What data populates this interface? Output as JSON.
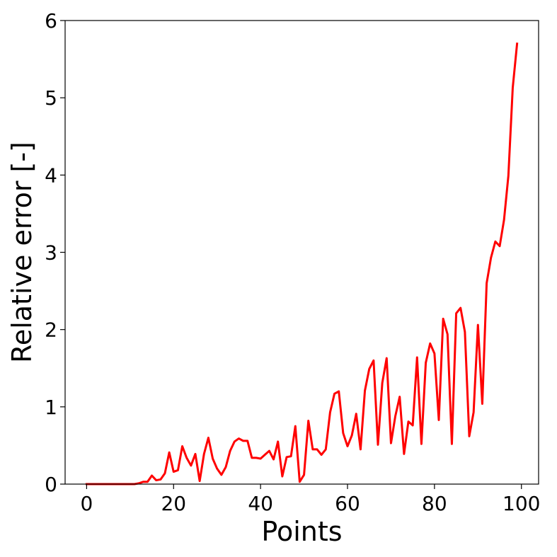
{
  "chart_data": {
    "type": "line",
    "title": "",
    "xlabel": "Points",
    "ylabel": "Relative error [-]",
    "xlim": [
      -4.95,
      103.95
    ],
    "ylim": [
      0,
      6
    ],
    "grid": false,
    "legend": "none",
    "x_ticks": [
      0,
      20,
      40,
      60,
      80,
      100
    ],
    "y_ticks": [
      0,
      1,
      2,
      3,
      4,
      5,
      6
    ],
    "series": [
      {
        "color": "#ff0000",
        "x": [
          0,
          1,
          2,
          3,
          4,
          5,
          6,
          7,
          8,
          9,
          10,
          11,
          12,
          13,
          14,
          15,
          16,
          17,
          18,
          19,
          20,
          21,
          22,
          23,
          24,
          25,
          26,
          27,
          28,
          29,
          30,
          31,
          32,
          33,
          34,
          35,
          36,
          37,
          38,
          39,
          40,
          41,
          42,
          43,
          44,
          45,
          46,
          47,
          48,
          49,
          50,
          51,
          52,
          53,
          54,
          55,
          56,
          57,
          58,
          59,
          60,
          61,
          62,
          63,
          64,
          65,
          66,
          67,
          68,
          69,
          70,
          71,
          72,
          73,
          74,
          75,
          76,
          77,
          78,
          79,
          80,
          81,
          82,
          83,
          84,
          85,
          86,
          87,
          88,
          89,
          90,
          91,
          92,
          93,
          94,
          95,
          96,
          97,
          98,
          99
        ],
        "values": [
          0,
          0,
          0,
          0,
          0,
          0,
          0,
          0,
          0,
          0,
          0,
          0,
          0.01,
          0.03,
          0.03,
          0.11,
          0.05,
          0.06,
          0.14,
          0.41,
          0.16,
          0.18,
          0.49,
          0.34,
          0.24,
          0.39,
          0.04,
          0.39,
          0.6,
          0.33,
          0.2,
          0.12,
          0.22,
          0.43,
          0.55,
          0.59,
          0.56,
          0.56,
          0.34,
          0.34,
          0.33,
          0.38,
          0.43,
          0.32,
          0.55,
          0.1,
          0.35,
          0.36,
          0.75,
          0.03,
          0.12,
          0.82,
          0.45,
          0.45,
          0.38,
          0.45,
          0.93,
          1.17,
          1.2,
          0.66,
          0.49,
          0.63,
          0.91,
          0.45,
          1.21,
          1.49,
          1.6,
          0.51,
          1.31,
          1.63,
          0.53,
          0.88,
          1.13,
          0.39,
          0.81,
          0.76,
          1.64,
          0.52,
          1.57,
          1.82,
          1.69,
          0.83,
          2.14,
          1.94,
          0.52,
          2.21,
          2.28,
          1.97,
          0.62,
          0.93,
          2.06,
          1.04,
          2.6,
          2.93,
          3.14,
          3.08,
          3.42,
          3.99,
          5.13,
          5.7
        ]
      }
    ]
  }
}
